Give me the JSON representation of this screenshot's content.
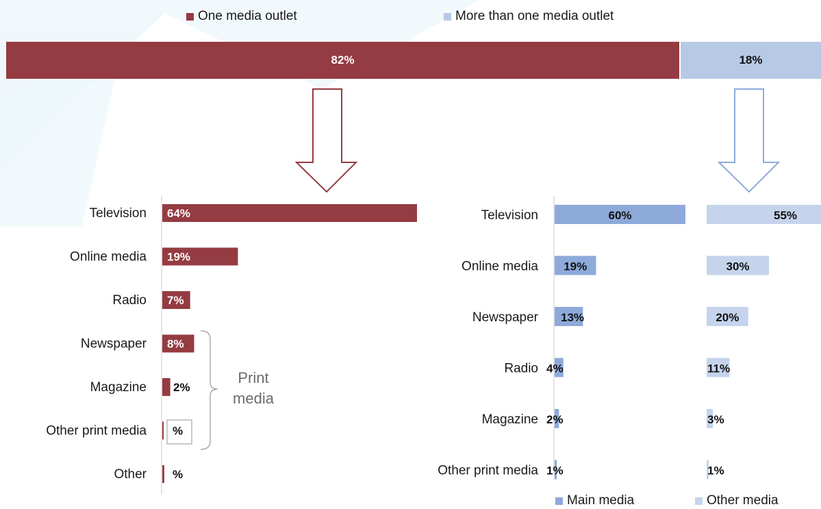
{
  "colors": {
    "one_outlet": "#953b42",
    "more_outlets": "#b8c9e6",
    "main_media": "#8eaadb",
    "other_media": "#c5d4ec",
    "axis": "#c8c8c8"
  },
  "legend_top": {
    "one": "One media outlet",
    "more": "More than one media outlet"
  },
  "legend_bottom": {
    "main": "Main media",
    "other": "Other media"
  },
  "print_media_label": "Print media",
  "chart_data": [
    {
      "type": "bar",
      "orientation": "horizontal-stacked",
      "series": [
        {
          "name": "One media outlet",
          "values": [
            82
          ],
          "labels": [
            "82%"
          ]
        },
        {
          "name": "More than one media outlet",
          "values": [
            18
          ],
          "labels": [
            "18%"
          ]
        }
      ],
      "xlim": [
        0,
        100
      ]
    },
    {
      "type": "bar",
      "orientation": "horizontal",
      "categories": [
        "Television",
        "Online media",
        "Radio",
        "Newspaper",
        "Magazine",
        "Other print media",
        "Other"
      ],
      "values": [
        64,
        19,
        7,
        8,
        2,
        0.3,
        0.5
      ],
      "labels": [
        "64%",
        "19%",
        "7%",
        "8%",
        "2%",
        "%",
        "%"
      ]
    },
    {
      "type": "bar",
      "orientation": "horizontal",
      "categories": [
        "Television",
        "Online media",
        "Newspaper",
        "Radio",
        "Magazine",
        "Other print media"
      ],
      "series": [
        {
          "name": "Main media",
          "values": [
            60,
            19,
            13,
            4,
            2,
            1
          ],
          "labels": [
            "60%",
            "19%",
            "13%",
            "4%",
            "2%",
            "1%"
          ]
        },
        {
          "name": "Other media",
          "values": [
            55,
            30,
            20,
            11,
            3,
            1
          ],
          "labels": [
            "55%",
            "30%",
            "20%",
            "11%",
            "3%",
            "1%"
          ]
        }
      ]
    }
  ]
}
